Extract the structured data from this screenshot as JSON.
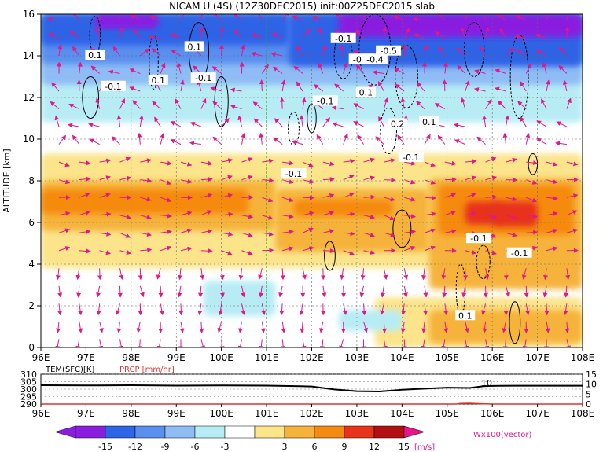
{
  "title": "NICAM U (4S) (12Z30DEC2015) init:00Z25DEC2015 slab",
  "colors": {
    "n15": "#8a1ee0",
    "n12": "#2e64e6",
    "n9": "#5a8ff0",
    "n6": "#8fbcf5",
    "n3": "#b8ecf5",
    "p3": "#fbe48a",
    "p6": "#f6b33b",
    "p9": "#f58a10",
    "p12": "#e8321a",
    "p15": "#b30f12",
    "over": "#e8158a",
    "vector": "#e0188a",
    "temp_line": "#000000",
    "precip_line": "#e03030",
    "marker_line": "#22aa22"
  },
  "chart_data": [
    {
      "type": "contour",
      "title": "NICAM U (4S) (12Z30DEC2015) init:00Z25DEC2015 slab",
      "xlabel": "",
      "ylabel": "ALTITUDE [km]",
      "x_ticks": [
        "96E",
        "97E",
        "98E",
        "99E",
        "100E",
        "101E",
        "102E",
        "103E",
        "104E",
        "105E",
        "106E",
        "107E",
        "108E"
      ],
      "x_range": [
        96,
        108
      ],
      "y_ticks": [
        "0",
        "2",
        "4",
        "6",
        "8",
        "10",
        "12",
        "14",
        "16"
      ],
      "y_range": [
        0,
        16
      ],
      "marker_lon": 101.0,
      "contour_labels": [
        {
          "text": "0.1",
          "lon": 97.2,
          "alt": 14.0
        },
        {
          "text": "-0.1",
          "lon": 97.6,
          "alt": 12.5
        },
        {
          "text": "0.1",
          "lon": 98.6,
          "alt": 12.8
        },
        {
          "text": "0.1",
          "lon": 99.4,
          "alt": 14.4
        },
        {
          "text": "-0.1",
          "lon": 99.6,
          "alt": 12.9
        },
        {
          "text": "-0.1",
          "lon": 102.7,
          "alt": 14.8
        },
        {
          "text": "-0.1",
          "lon": 102.3,
          "alt": 11.8
        },
        {
          "text": "-0.1",
          "lon": 103.1,
          "alt": 13.8
        },
        {
          "text": "-0.4",
          "lon": 103.4,
          "alt": 13.8
        },
        {
          "text": "-0.5",
          "lon": 103.7,
          "alt": 14.2
        },
        {
          "text": "0.1",
          "lon": 103.2,
          "alt": 12.2
        },
        {
          "text": "0.2",
          "lon": 103.9,
          "alt": 10.7
        },
        {
          "text": "0.1",
          "lon": 104.6,
          "alt": 10.8
        },
        {
          "text": "-0.1",
          "lon": 104.2,
          "alt": 9.1
        },
        {
          "text": "-0.1",
          "lon": 101.6,
          "alt": 8.3
        },
        {
          "text": "-0.1",
          "lon": 105.7,
          "alt": 5.2
        },
        {
          "text": "-0.1",
          "lon": 106.6,
          "alt": 4.5
        },
        {
          "text": "0.1",
          "lon": 105.4,
          "alt": 1.5
        }
      ]
    },
    {
      "type": "line",
      "title": "",
      "left_axis_label": "TEM(SFC)[K]",
      "right_axis_label": "PRCP [mm/hr]",
      "left_ticks": [
        "310",
        "305",
        "300",
        "295",
        "290"
      ],
      "left_range": [
        290,
        310
      ],
      "right_ticks": [
        "15",
        "10",
        "5",
        "0"
      ],
      "right_range": [
        0,
        15
      ],
      "x_ticks": [
        "96E",
        "97E",
        "98E",
        "99E",
        "100E",
        "101E",
        "102E",
        "103E",
        "104E",
        "105E",
        "106E",
        "107E",
        "108E"
      ],
      "series": [
        {
          "name": "TEM(SFC)[K]",
          "lon": [
            96,
            97,
            98,
            99,
            100,
            101,
            102,
            102.5,
            103,
            103.5,
            104,
            104.5,
            105,
            105.5,
            105.8,
            106,
            106.5,
            107,
            108
          ],
          "values": [
            302.6,
            302.5,
            302.6,
            302.4,
            302.5,
            302.4,
            301.8,
            299.8,
            298.6,
            298.4,
            299.6,
            300.3,
            301.0,
            300.8,
            302.0,
            302.2,
            302.3,
            302.3,
            302.3
          ]
        },
        {
          "name": "PRCP [mm/hr]",
          "lon": [
            96,
            105.2,
            105.3,
            105.5,
            105.7,
            106,
            108
          ],
          "values": [
            0,
            0,
            0.3,
            0.4,
            0.2,
            0,
            0
          ]
        }
      ],
      "annotation": "10"
    },
    {
      "type": "colorbar",
      "ticks": [
        "-15",
        "-12",
        "-9",
        "-6",
        "-3",
        "3",
        "6",
        "9",
        "12",
        "15"
      ],
      "unit": "[m/s]",
      "vector_label": "Wx100(vector)"
    }
  ]
}
